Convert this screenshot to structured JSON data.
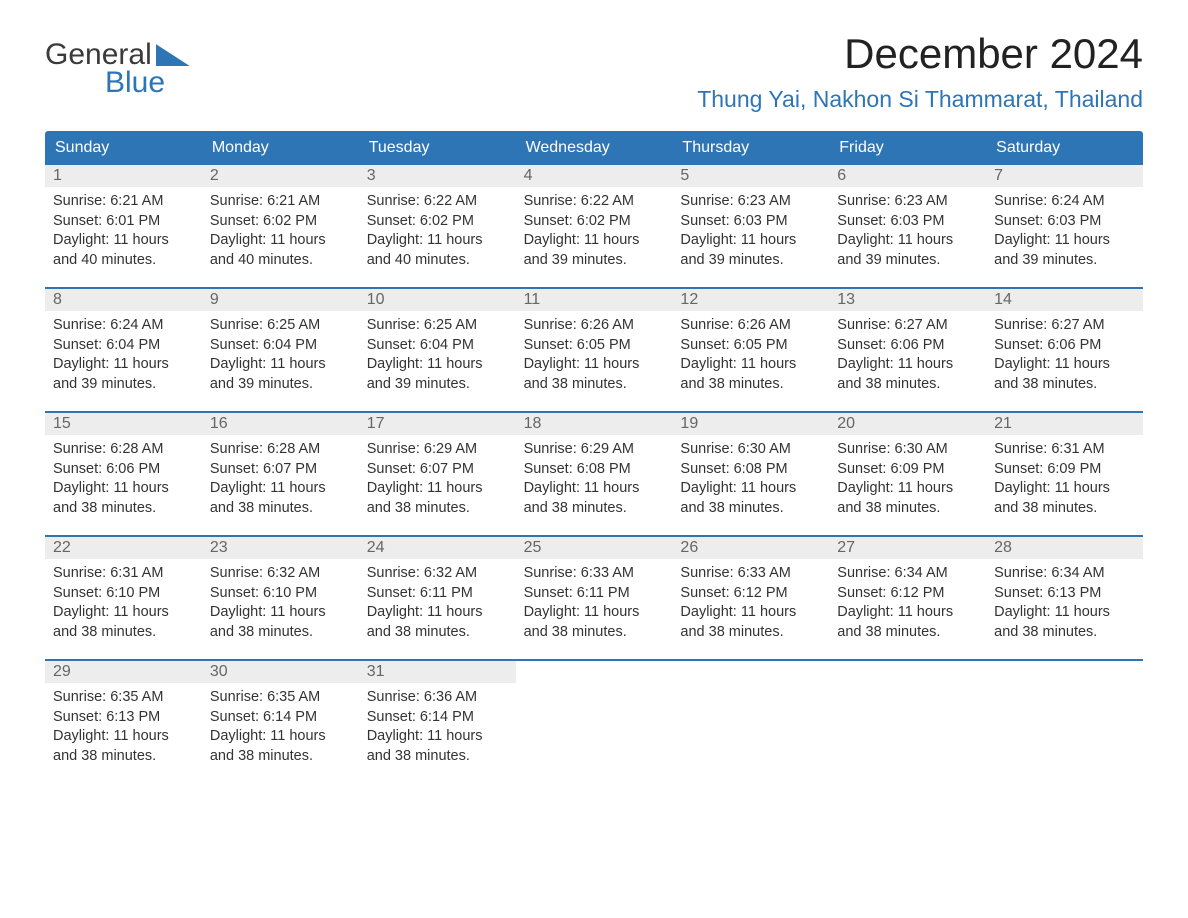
{
  "logo": {
    "word1": "General",
    "word2": "Blue"
  },
  "title": "December 2024",
  "location": "Thung Yai, Nakhon Si Thammarat, Thailand",
  "colors": {
    "accent": "#2e75b6",
    "daynum_bg": "#ededed",
    "text": "#333333",
    "bg": "#ffffff"
  },
  "weekdays": [
    "Sunday",
    "Monday",
    "Tuesday",
    "Wednesday",
    "Thursday",
    "Friday",
    "Saturday"
  ],
  "weeks": [
    [
      {
        "n": "1",
        "sunrise": "Sunrise: 6:21 AM",
        "sunset": "Sunset: 6:01 PM",
        "day1": "Daylight: 11 hours",
        "day2": "and 40 minutes."
      },
      {
        "n": "2",
        "sunrise": "Sunrise: 6:21 AM",
        "sunset": "Sunset: 6:02 PM",
        "day1": "Daylight: 11 hours",
        "day2": "and 40 minutes."
      },
      {
        "n": "3",
        "sunrise": "Sunrise: 6:22 AM",
        "sunset": "Sunset: 6:02 PM",
        "day1": "Daylight: 11 hours",
        "day2": "and 40 minutes."
      },
      {
        "n": "4",
        "sunrise": "Sunrise: 6:22 AM",
        "sunset": "Sunset: 6:02 PM",
        "day1": "Daylight: 11 hours",
        "day2": "and 39 minutes."
      },
      {
        "n": "5",
        "sunrise": "Sunrise: 6:23 AM",
        "sunset": "Sunset: 6:03 PM",
        "day1": "Daylight: 11 hours",
        "day2": "and 39 minutes."
      },
      {
        "n": "6",
        "sunrise": "Sunrise: 6:23 AM",
        "sunset": "Sunset: 6:03 PM",
        "day1": "Daylight: 11 hours",
        "day2": "and 39 minutes."
      },
      {
        "n": "7",
        "sunrise": "Sunrise: 6:24 AM",
        "sunset": "Sunset: 6:03 PM",
        "day1": "Daylight: 11 hours",
        "day2": "and 39 minutes."
      }
    ],
    [
      {
        "n": "8",
        "sunrise": "Sunrise: 6:24 AM",
        "sunset": "Sunset: 6:04 PM",
        "day1": "Daylight: 11 hours",
        "day2": "and 39 minutes."
      },
      {
        "n": "9",
        "sunrise": "Sunrise: 6:25 AM",
        "sunset": "Sunset: 6:04 PM",
        "day1": "Daylight: 11 hours",
        "day2": "and 39 minutes."
      },
      {
        "n": "10",
        "sunrise": "Sunrise: 6:25 AM",
        "sunset": "Sunset: 6:04 PM",
        "day1": "Daylight: 11 hours",
        "day2": "and 39 minutes."
      },
      {
        "n": "11",
        "sunrise": "Sunrise: 6:26 AM",
        "sunset": "Sunset: 6:05 PM",
        "day1": "Daylight: 11 hours",
        "day2": "and 38 minutes."
      },
      {
        "n": "12",
        "sunrise": "Sunrise: 6:26 AM",
        "sunset": "Sunset: 6:05 PM",
        "day1": "Daylight: 11 hours",
        "day2": "and 38 minutes."
      },
      {
        "n": "13",
        "sunrise": "Sunrise: 6:27 AM",
        "sunset": "Sunset: 6:06 PM",
        "day1": "Daylight: 11 hours",
        "day2": "and 38 minutes."
      },
      {
        "n": "14",
        "sunrise": "Sunrise: 6:27 AM",
        "sunset": "Sunset: 6:06 PM",
        "day1": "Daylight: 11 hours",
        "day2": "and 38 minutes."
      }
    ],
    [
      {
        "n": "15",
        "sunrise": "Sunrise: 6:28 AM",
        "sunset": "Sunset: 6:06 PM",
        "day1": "Daylight: 11 hours",
        "day2": "and 38 minutes."
      },
      {
        "n": "16",
        "sunrise": "Sunrise: 6:28 AM",
        "sunset": "Sunset: 6:07 PM",
        "day1": "Daylight: 11 hours",
        "day2": "and 38 minutes."
      },
      {
        "n": "17",
        "sunrise": "Sunrise: 6:29 AM",
        "sunset": "Sunset: 6:07 PM",
        "day1": "Daylight: 11 hours",
        "day2": "and 38 minutes."
      },
      {
        "n": "18",
        "sunrise": "Sunrise: 6:29 AM",
        "sunset": "Sunset: 6:08 PM",
        "day1": "Daylight: 11 hours",
        "day2": "and 38 minutes."
      },
      {
        "n": "19",
        "sunrise": "Sunrise: 6:30 AM",
        "sunset": "Sunset: 6:08 PM",
        "day1": "Daylight: 11 hours",
        "day2": "and 38 minutes."
      },
      {
        "n": "20",
        "sunrise": "Sunrise: 6:30 AM",
        "sunset": "Sunset: 6:09 PM",
        "day1": "Daylight: 11 hours",
        "day2": "and 38 minutes."
      },
      {
        "n": "21",
        "sunrise": "Sunrise: 6:31 AM",
        "sunset": "Sunset: 6:09 PM",
        "day1": "Daylight: 11 hours",
        "day2": "and 38 minutes."
      }
    ],
    [
      {
        "n": "22",
        "sunrise": "Sunrise: 6:31 AM",
        "sunset": "Sunset: 6:10 PM",
        "day1": "Daylight: 11 hours",
        "day2": "and 38 minutes."
      },
      {
        "n": "23",
        "sunrise": "Sunrise: 6:32 AM",
        "sunset": "Sunset: 6:10 PM",
        "day1": "Daylight: 11 hours",
        "day2": "and 38 minutes."
      },
      {
        "n": "24",
        "sunrise": "Sunrise: 6:32 AM",
        "sunset": "Sunset: 6:11 PM",
        "day1": "Daylight: 11 hours",
        "day2": "and 38 minutes."
      },
      {
        "n": "25",
        "sunrise": "Sunrise: 6:33 AM",
        "sunset": "Sunset: 6:11 PM",
        "day1": "Daylight: 11 hours",
        "day2": "and 38 minutes."
      },
      {
        "n": "26",
        "sunrise": "Sunrise: 6:33 AM",
        "sunset": "Sunset: 6:12 PM",
        "day1": "Daylight: 11 hours",
        "day2": "and 38 minutes."
      },
      {
        "n": "27",
        "sunrise": "Sunrise: 6:34 AM",
        "sunset": "Sunset: 6:12 PM",
        "day1": "Daylight: 11 hours",
        "day2": "and 38 minutes."
      },
      {
        "n": "28",
        "sunrise": "Sunrise: 6:34 AM",
        "sunset": "Sunset: 6:13 PM",
        "day1": "Daylight: 11 hours",
        "day2": "and 38 minutes."
      }
    ],
    [
      {
        "n": "29",
        "sunrise": "Sunrise: 6:35 AM",
        "sunset": "Sunset: 6:13 PM",
        "day1": "Daylight: 11 hours",
        "day2": "and 38 minutes."
      },
      {
        "n": "30",
        "sunrise": "Sunrise: 6:35 AM",
        "sunset": "Sunset: 6:14 PM",
        "day1": "Daylight: 11 hours",
        "day2": "and 38 minutes."
      },
      {
        "n": "31",
        "sunrise": "Sunrise: 6:36 AM",
        "sunset": "Sunset: 6:14 PM",
        "day1": "Daylight: 11 hours",
        "day2": "and 38 minutes."
      },
      {
        "empty": true
      },
      {
        "empty": true
      },
      {
        "empty": true
      },
      {
        "empty": true
      }
    ]
  ]
}
